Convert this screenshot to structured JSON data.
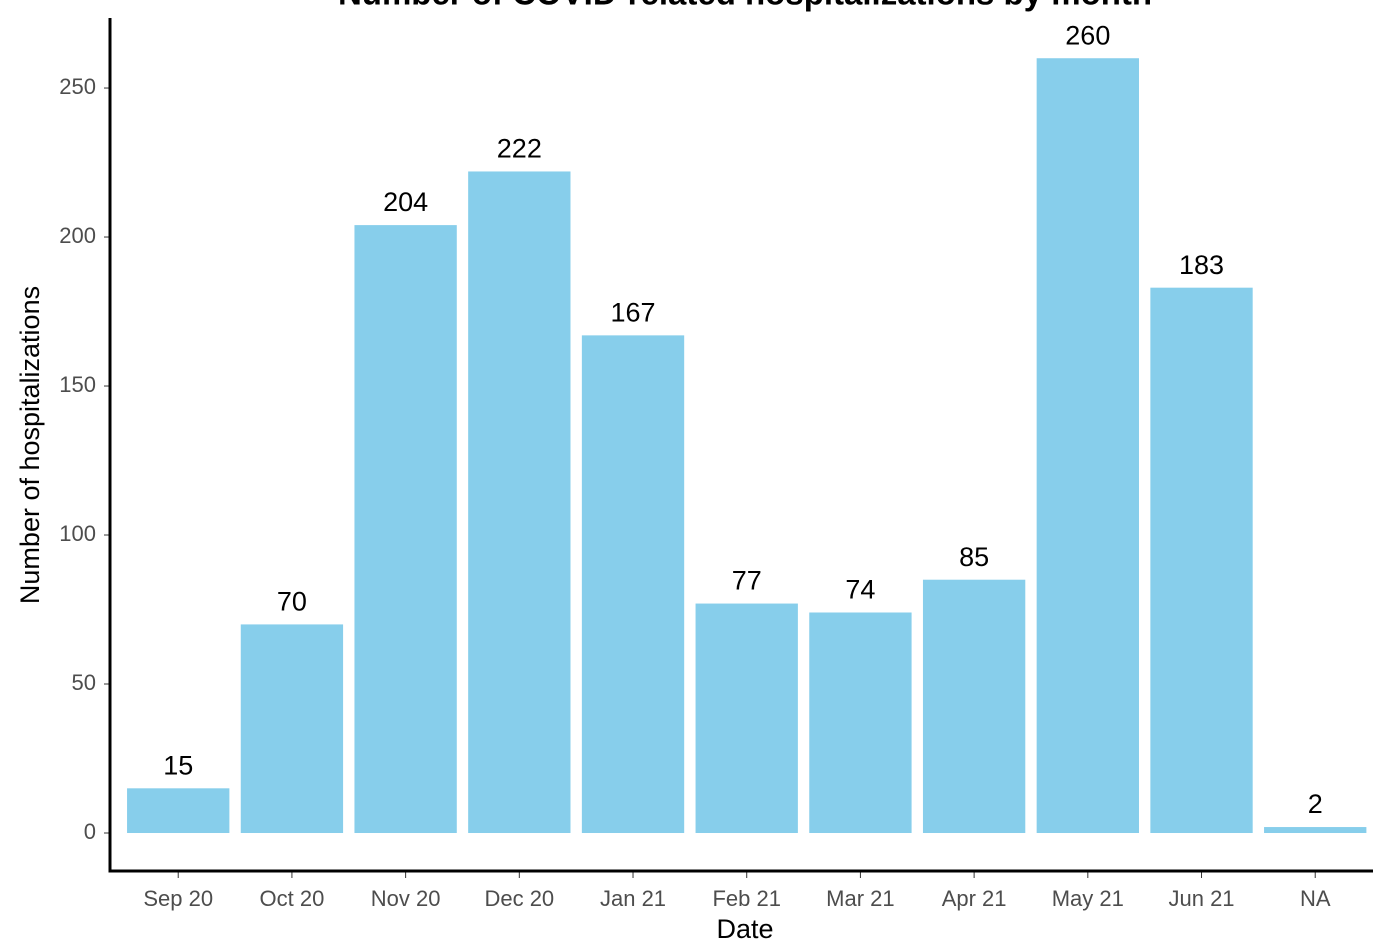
{
  "chart_data": {
    "type": "bar",
    "title": "Number of COVID-related hospitalizations by month",
    "x_label": "Date",
    "y_label": "Number of hospitalizations",
    "categories": [
      "Sep 20",
      "Oct 20",
      "Nov 20",
      "Dec 20",
      "Jan 21",
      "Feb 21",
      "Mar 21",
      "Apr 21",
      "May 21",
      "Jun 21",
      "NA"
    ],
    "values": [
      15,
      70,
      204,
      222,
      167,
      77,
      74,
      85,
      260,
      183,
      2
    ],
    "color": "#87ceeb",
    "ylim": [
      -12.75,
      273.5
    ],
    "yticks": [
      0,
      50,
      100,
      150,
      200,
      250
    ],
    "grid": false,
    "data_labels": true
  }
}
